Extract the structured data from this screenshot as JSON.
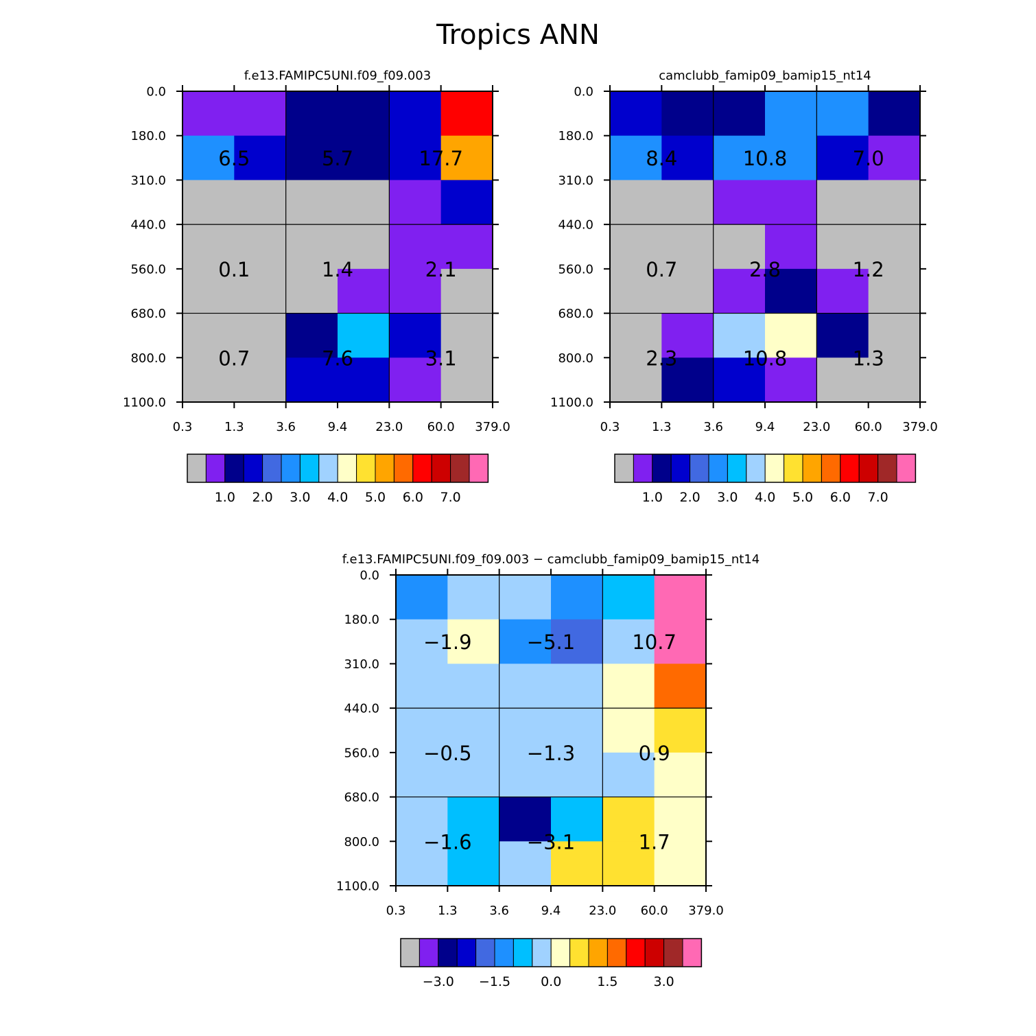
{
  "figure_title": "Tropics ANN",
  "colors": {
    "main_palette": [
      "#bebebe",
      "#8020f0",
      "#00008b",
      "#0000cd",
      "#4169e1",
      "#1e90ff",
      "#00bfff",
      "#a0d2ff",
      "#ffffc8",
      "#ffe130",
      "#ffa500",
      "#ff6a00",
      "#ff0000",
      "#cd0000",
      "#a02828",
      "#ff69b4"
    ],
    "diff_palette": [
      "#bebebe",
      "#8020f0",
      "#00008b",
      "#0000cd",
      "#4169e1",
      "#1e90ff",
      "#00bfff",
      "#a0d2ff",
      "#ffffc8",
      "#ffe130",
      "#ffa500",
      "#ff6a00",
      "#ff0000",
      "#cd0000",
      "#a02828",
      "#ff69b4"
    ]
  },
  "chart_data": [
    {
      "type": "heatmap",
      "title": "f.e13.FAMIPC5UNI.f09_f09.003",
      "x_edges": [
        "0.3",
        "1.3",
        "3.6",
        "9.4",
        "23.0",
        "60.0",
        "379.0"
      ],
      "y_edges": [
        "0.0",
        "180.0",
        "310.0",
        "440.0",
        "560.0",
        "680.0",
        "800.0",
        "1100.0"
      ],
      "cell_color_index": [
        [
          1,
          1,
          2,
          2,
          3,
          12
        ],
        [
          5,
          3,
          2,
          2,
          3,
          10
        ],
        [
          0,
          0,
          0,
          0,
          1,
          3
        ],
        [
          0,
          0,
          0,
          0,
          1,
          1
        ],
        [
          0,
          0,
          0,
          1,
          1,
          0
        ],
        [
          0,
          0,
          2,
          6,
          3,
          0
        ],
        [
          0,
          0,
          3,
          3,
          1,
          0
        ]
      ],
      "block_totals": [
        {
          "row": 0,
          "col": 0,
          "text": "6.5"
        },
        {
          "row": 0,
          "col": 1,
          "text": "5.7"
        },
        {
          "row": 0,
          "col": 2,
          "text": "17.7"
        },
        {
          "row": 1,
          "col": 0,
          "text": "0.1"
        },
        {
          "row": 1,
          "col": 1,
          "text": "1.4"
        },
        {
          "row": 1,
          "col": 2,
          "text": "2.1"
        },
        {
          "row": 2,
          "col": 0,
          "text": "0.7"
        },
        {
          "row": 2,
          "col": 1,
          "text": "7.6"
        },
        {
          "row": 2,
          "col": 2,
          "text": "3.1"
        }
      ],
      "colorbar": {
        "palette": "main_palette",
        "labels": [
          "1.0",
          "2.0",
          "3.0",
          "4.0",
          "5.0",
          "6.0",
          "7.0"
        ]
      }
    },
    {
      "type": "heatmap",
      "title": "camclubb_famip09_bamip15_nt14",
      "x_edges": [
        "0.3",
        "1.3",
        "3.6",
        "9.4",
        "23.0",
        "60.0",
        "379.0"
      ],
      "y_edges": [
        "0.0",
        "180.0",
        "310.0",
        "440.0",
        "560.0",
        "680.0",
        "800.0",
        "1100.0"
      ],
      "cell_color_index": [
        [
          3,
          2,
          2,
          5,
          5,
          2
        ],
        [
          5,
          3,
          5,
          5,
          3,
          1
        ],
        [
          0,
          0,
          1,
          1,
          0,
          0
        ],
        [
          0,
          0,
          0,
          1,
          0,
          0
        ],
        [
          0,
          0,
          1,
          2,
          1,
          0
        ],
        [
          0,
          1,
          7,
          8,
          2,
          0
        ],
        [
          0,
          2,
          3,
          1,
          0,
          0
        ]
      ],
      "block_totals": [
        {
          "row": 0,
          "col": 0,
          "text": "8.4"
        },
        {
          "row": 0,
          "col": 1,
          "text": "10.8"
        },
        {
          "row": 0,
          "col": 2,
          "text": "7.0"
        },
        {
          "row": 1,
          "col": 0,
          "text": "0.7"
        },
        {
          "row": 1,
          "col": 1,
          "text": "2.8"
        },
        {
          "row": 1,
          "col": 2,
          "text": "1.2"
        },
        {
          "row": 2,
          "col": 0,
          "text": "2.3"
        },
        {
          "row": 2,
          "col": 1,
          "text": "10.8"
        },
        {
          "row": 2,
          "col": 2,
          "text": "1.3"
        }
      ],
      "colorbar": {
        "palette": "main_palette",
        "labels": [
          "1.0",
          "2.0",
          "3.0",
          "4.0",
          "5.0",
          "6.0",
          "7.0"
        ]
      }
    },
    {
      "type": "heatmap",
      "title": "f.e13.FAMIPC5UNI.f09_f09.003 − camclubb_famip09_bamip15_nt14",
      "x_edges": [
        "0.3",
        "1.3",
        "3.6",
        "9.4",
        "23.0",
        "60.0",
        "379.0"
      ],
      "y_edges": [
        "0.0",
        "180.0",
        "310.0",
        "440.0",
        "560.0",
        "680.0",
        "800.0",
        "1100.0"
      ],
      "cell_color_index": [
        [
          5,
          7,
          7,
          5,
          6,
          15
        ],
        [
          7,
          8,
          5,
          4,
          7,
          15
        ],
        [
          7,
          7,
          7,
          7,
          8,
          11
        ],
        [
          7,
          7,
          7,
          7,
          8,
          9
        ],
        [
          7,
          7,
          7,
          7,
          7,
          8
        ],
        [
          7,
          6,
          2,
          6,
          9,
          8
        ],
        [
          7,
          6,
          7,
          9,
          9,
          8
        ]
      ],
      "block_totals": [
        {
          "row": 0,
          "col": 0,
          "text": "−1.9"
        },
        {
          "row": 0,
          "col": 1,
          "text": "−5.1"
        },
        {
          "row": 0,
          "col": 2,
          "text": "10.7"
        },
        {
          "row": 1,
          "col": 0,
          "text": "−0.5"
        },
        {
          "row": 1,
          "col": 1,
          "text": "−1.3"
        },
        {
          "row": 1,
          "col": 2,
          "text": "0.9"
        },
        {
          "row": 2,
          "col": 0,
          "text": "−1.6"
        },
        {
          "row": 2,
          "col": 1,
          "text": "−3.1"
        },
        {
          "row": 2,
          "col": 2,
          "text": "1.7"
        }
      ],
      "colorbar": {
        "palette": "diff_palette",
        "labels": [
          "−3.0",
          "−1.5",
          "0.0",
          "1.5",
          "3.0"
        ]
      }
    }
  ]
}
